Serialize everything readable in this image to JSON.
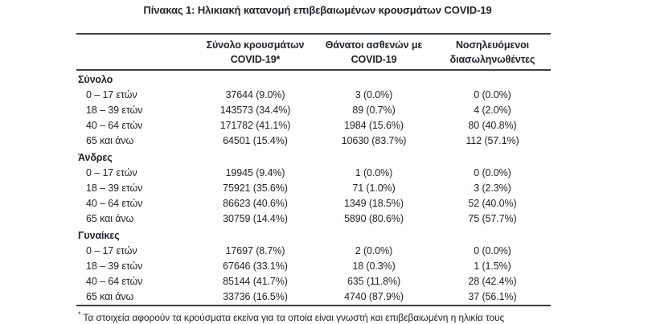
{
  "title": "Πίνακας 1: Ηλικιακή κατανομή επιβεβαιωμένων κρουσμάτων COVID-19",
  "header": {
    "col_cases": "Σύνολο κρουσμάτων\nCOVID-19*",
    "col_deaths": "Θάνατοι ασθενών με\nCOVID-19",
    "col_intubated": "Νοσηλευόμενοι\nδιασωληνωθέντες"
  },
  "sections": [
    {
      "name": "Σύνολο",
      "rows": [
        {
          "label": "0 – 17 ετών",
          "cases": "37644 (9.0%)",
          "deaths": "3 (0.0%)",
          "intubated": "0 (0.0%)"
        },
        {
          "label": "18 – 39 ετών",
          "cases": "143573 (34.4%)",
          "deaths": "89 (0.7%)",
          "intubated": "4 (2.0%)"
        },
        {
          "label": "40 – 64 ετών",
          "cases": "171782 (41.1%)",
          "deaths": "1984 (15.6%)",
          "intubated": "80 (40.8%)"
        },
        {
          "label": "65 και άνω",
          "cases": "64501 (15.4%)",
          "deaths": "10630 (83.7%)",
          "intubated": "112 (57.1%)"
        }
      ]
    },
    {
      "name": "Άνδρες",
      "rows": [
        {
          "label": "0 – 17 ετών",
          "cases": "19945 (9.4%)",
          "deaths": "1 (0.0%)",
          "intubated": "0 (0.0%)"
        },
        {
          "label": "18 – 39 ετών",
          "cases": "75921 (35.6%)",
          "deaths": "71 (1.0%)",
          "intubated": "3 (2.3%)"
        },
        {
          "label": "40 – 64 ετών",
          "cases": "86623 (40.6%)",
          "deaths": "1349 (18.5%)",
          "intubated": "52 (40.0%)"
        },
        {
          "label": "65 και άνω",
          "cases": "30759 (14.4%)",
          "deaths": "5890 (80.6%)",
          "intubated": "75 (57.7%)"
        }
      ]
    },
    {
      "name": "Γυναίκες",
      "rows": [
        {
          "label": "0 – 17 ετών",
          "cases": "17697 (8.7%)",
          "deaths": "2 (0.0%)",
          "intubated": "0 (0.0%)"
        },
        {
          "label": "18 – 39 ετών",
          "cases": "67646 (33.1%)",
          "deaths": "18 (0.3%)",
          "intubated": "1 (1.5%)"
        },
        {
          "label": "40 – 64 ετών",
          "cases": "85144 (41.7%)",
          "deaths": "635 (11.8%)",
          "intubated": "28 (42.4%)"
        },
        {
          "label": "65 και άνω",
          "cases": "33736 (16.5%)",
          "deaths": "4740 (87.9%)",
          "intubated": "37 (56.1%)"
        }
      ]
    }
  ],
  "footnote": {
    "marker": "*",
    "text": "Τα στοιχεία αφορούν τα κρούσματα εκείνα για τα οποία είναι γνωστή και επιβεβαιωμένη η ηλικία τους"
  }
}
